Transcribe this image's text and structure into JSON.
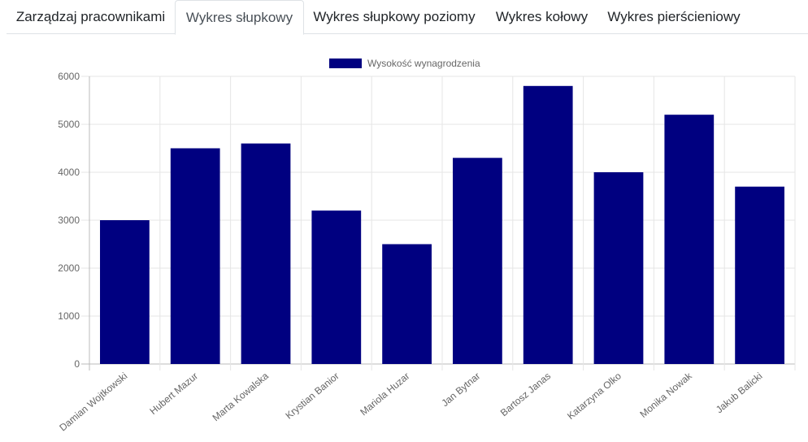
{
  "tabs": [
    {
      "label": "Zarządzaj pracownikami",
      "active": false
    },
    {
      "label": "Wykres słupkowy",
      "active": true
    },
    {
      "label": "Wykres słupkowy poziomy",
      "active": false
    },
    {
      "label": "Wykres kołowy",
      "active": false
    },
    {
      "label": "Wykres pierścieniowy",
      "active": false
    }
  ],
  "chart_data": {
    "type": "bar",
    "categories": [
      "Damian Wojtkowski",
      "Hubert Mazur",
      "Marta Kowalska",
      "Krystian Banior",
      "Mariola Huzar",
      "Jan Bytnar",
      "Bartosz Janas",
      "Katarzyna Olko",
      "Monika Nowak",
      "Jakub Balicki"
    ],
    "series": [
      {
        "name": "Wysokość wynagrodzenia",
        "values": [
          3000,
          4500,
          4600,
          3200,
          2500,
          4300,
          5800,
          4000,
          5200,
          3700
        ],
        "color": "#000080"
      }
    ],
    "yticks": [
      "0",
      "1000",
      "2000",
      "3000",
      "4000",
      "5000",
      "6000"
    ],
    "ylim": [
      0,
      6000
    ],
    "grid": true,
    "legend_position": "top"
  }
}
